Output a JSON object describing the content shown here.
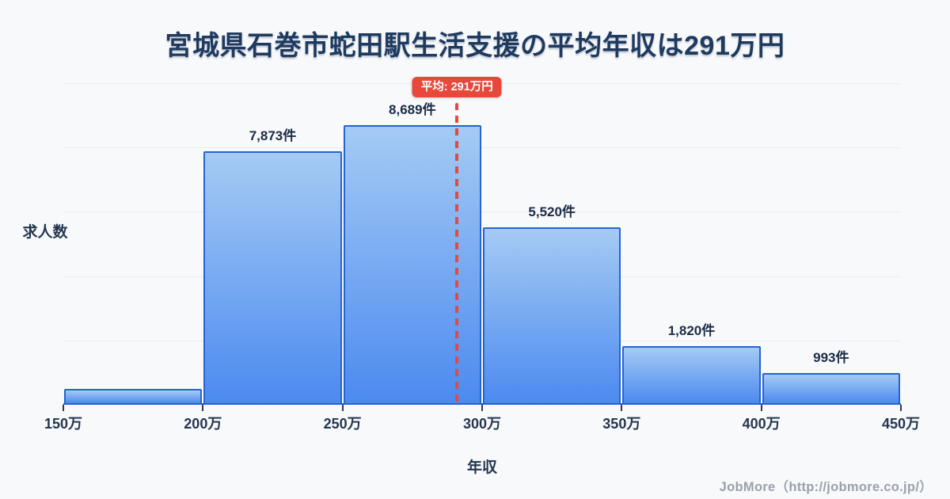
{
  "title": "宮城県石巻市蛇田駅生活支援の平均年収は291万円",
  "footer": "JobMore（http://jobmore.co.jp/）",
  "chart_data": {
    "type": "bar",
    "title": "宮城県石巻市蛇田駅生活支援の平均年収は291万円",
    "xlabel": "年収",
    "ylabel": "求人数",
    "x_tick_labels": [
      "150万",
      "200万",
      "250万",
      "300万",
      "350万",
      "400万",
      "450万"
    ],
    "bin_edges_manyen": [
      150,
      200,
      250,
      300,
      350,
      400,
      450
    ],
    "values": [
      490,
      7873,
      8689,
      5520,
      1820,
      993
    ],
    "bar_labels": [
      "",
      "7,873件",
      "8,689件",
      "5,520件",
      "1,820件",
      "993件"
    ],
    "average_manyen": 291,
    "average_label": "平均: 291万円",
    "ylim": [
      0,
      10000
    ],
    "grid_step": 2000,
    "grid": "horizontal",
    "legend": "none",
    "colors": {
      "background": "#f8f9fb",
      "title_text": "#1e3a5f",
      "bar_border": "#2563d3",
      "bar_fill_top": "#a5cbf4",
      "bar_fill_bottom": "#4c8af0",
      "average_line": "#e8483b",
      "badge_bg": "#e8483b",
      "badge_text": "#ffffff",
      "axis_line": "#2160d6",
      "tick_text": "#24364f",
      "gridline": "#e9edf4",
      "footer_text": "#9aa1ac"
    }
  }
}
